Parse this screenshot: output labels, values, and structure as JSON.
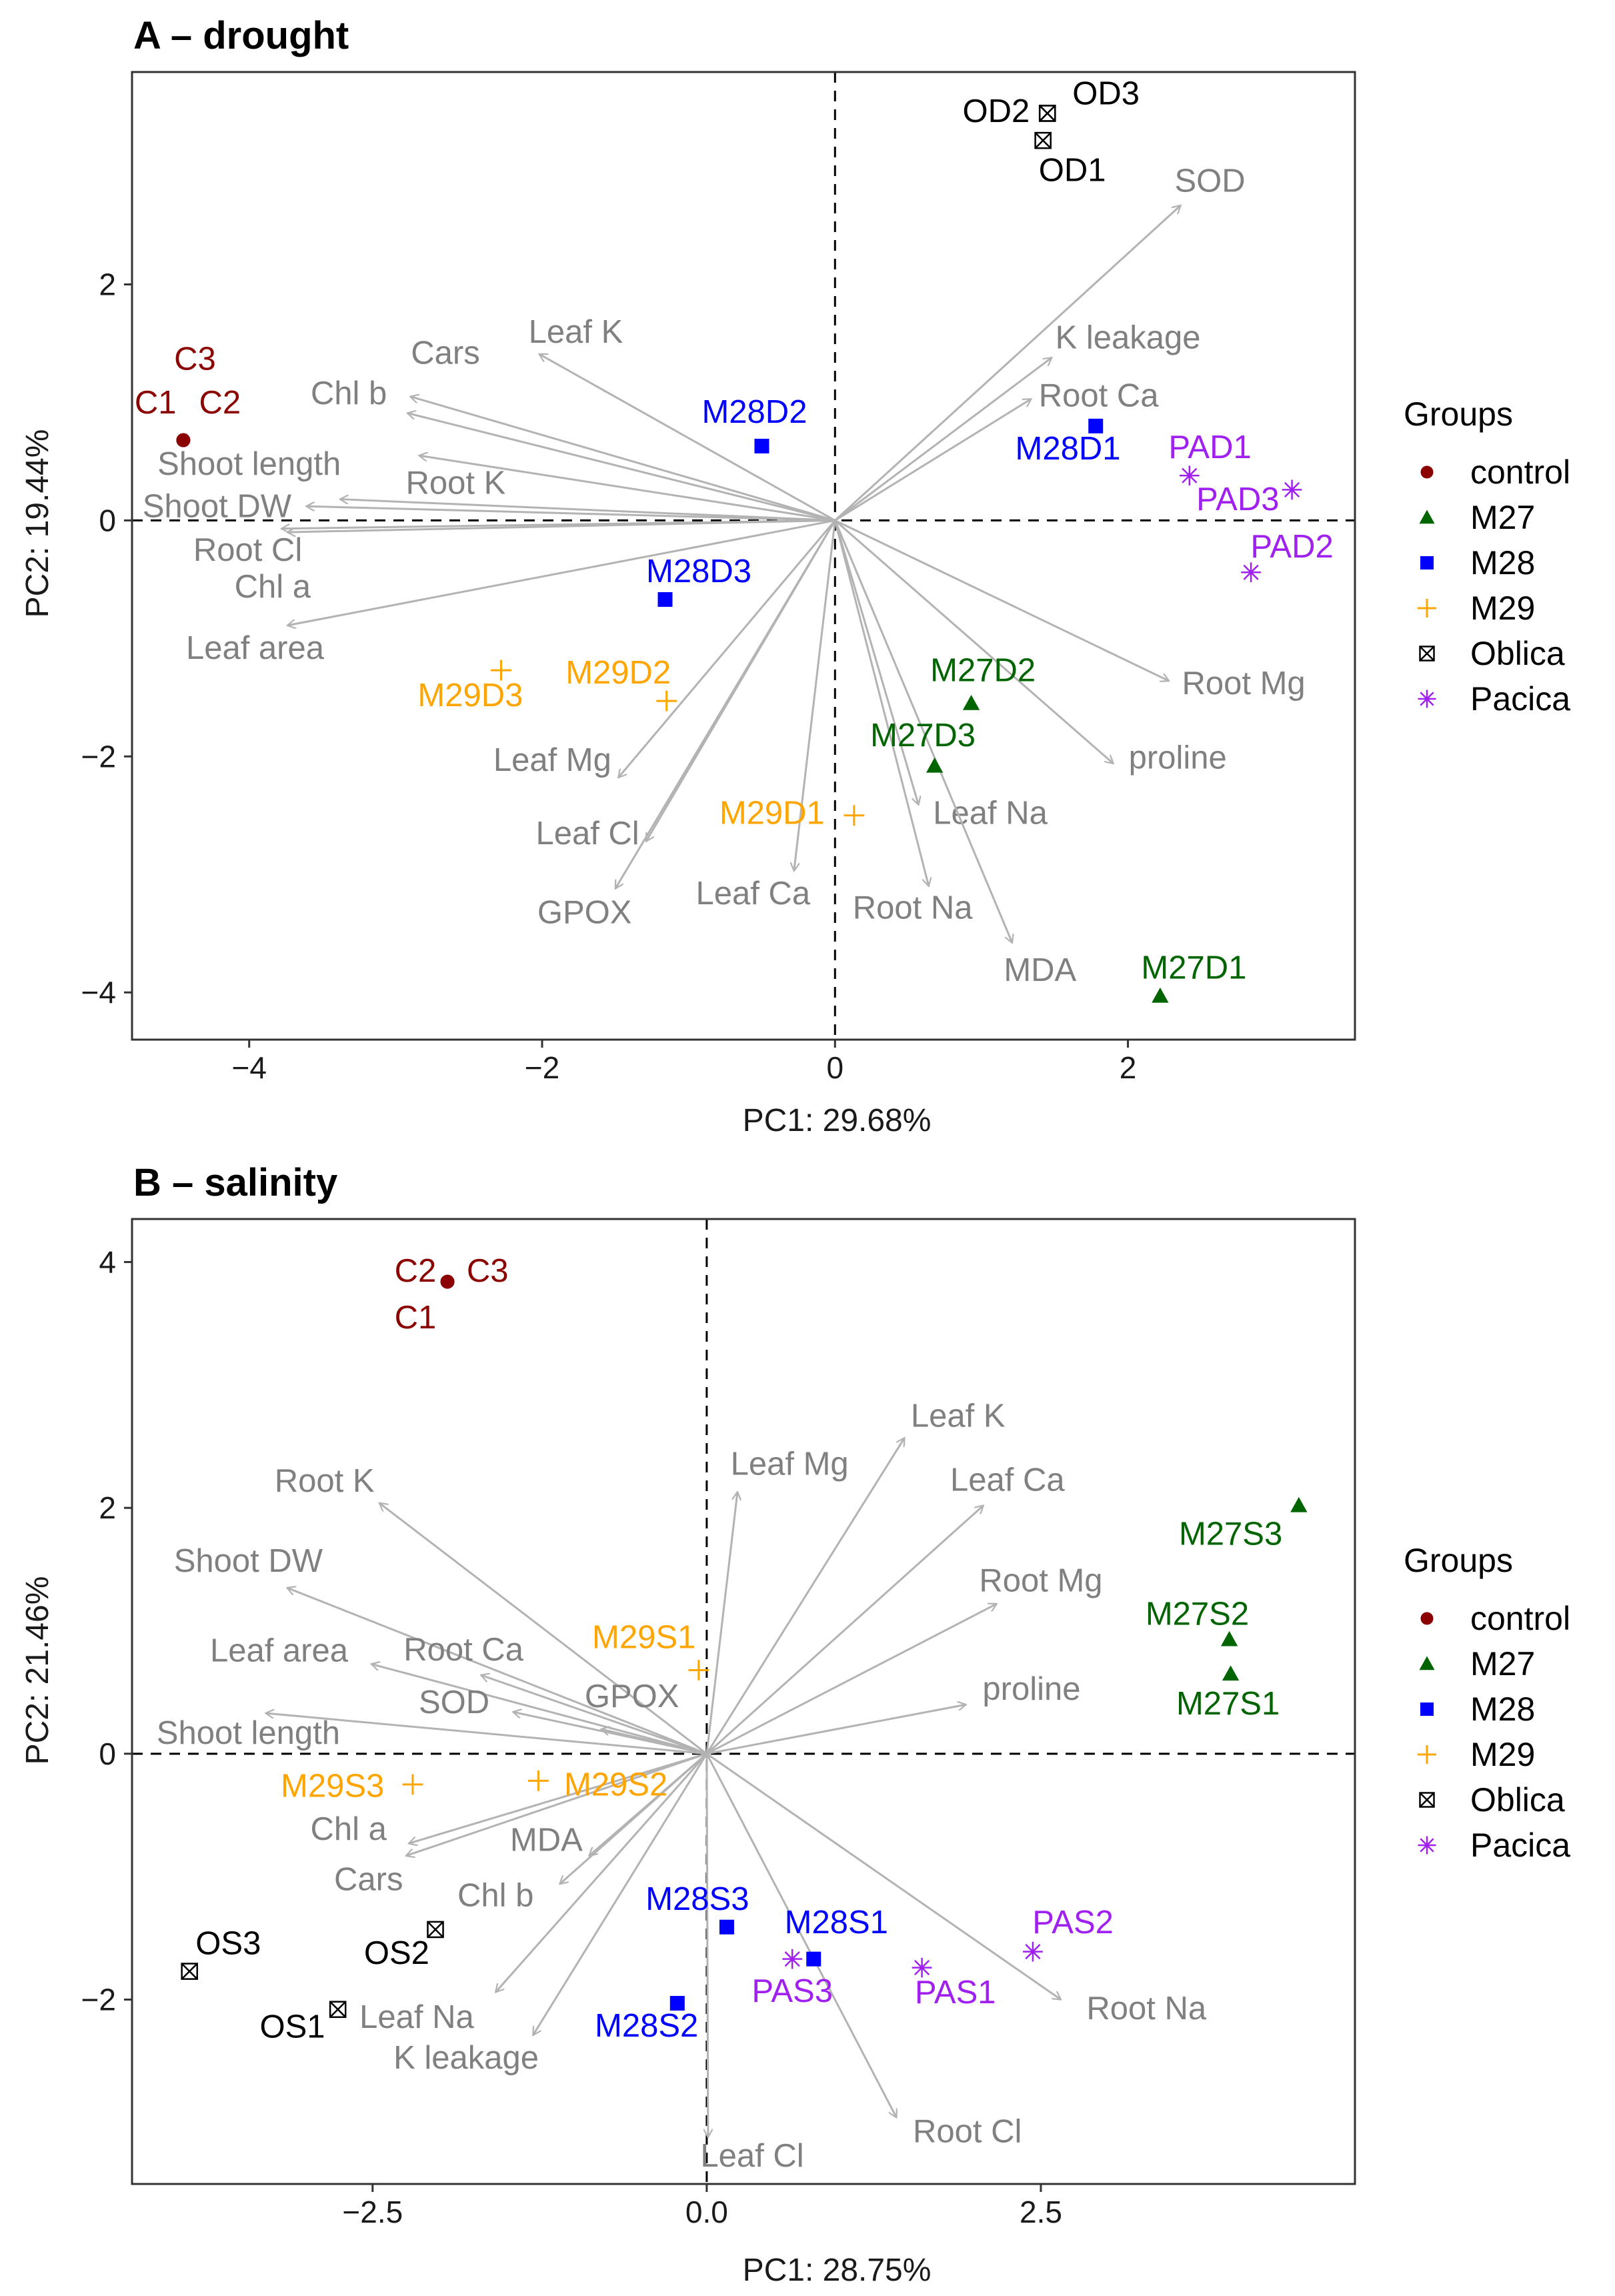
{
  "colors": {
    "control": "#8b0000",
    "M27": "#006400",
    "M28": "#0000ff",
    "M29": "#ffa500",
    "Oblica": "#000000",
    "Pacica": "#a020f0",
    "arrow": "#b3b3b3",
    "var_text": "#808080"
  },
  "legend": {
    "title": "Groups",
    "items": [
      {
        "label": "control",
        "group": "control",
        "shape": "circle"
      },
      {
        "label": "M27",
        "group": "M27",
        "shape": "triangle"
      },
      {
        "label": "M28",
        "group": "M28",
        "shape": "square"
      },
      {
        "label": "M29",
        "group": "M29",
        "shape": "plus"
      },
      {
        "label": "Oblica",
        "group": "Oblica",
        "shape": "boxx"
      },
      {
        "label": "Pacica",
        "group": "Pacica",
        "shape": "asterisk"
      }
    ]
  },
  "chart_data": [
    {
      "type": "scatter",
      "subtype": "pca-biplot",
      "title": "A – drought",
      "xlabel": "PC1: 29.68%",
      "ylabel": "PC2: 19.44%",
      "xlim": [
        -4.8,
        3.55
      ],
      "ylim": [
        -4.4,
        3.8
      ],
      "xticks": [
        -4,
        -2,
        0,
        2
      ],
      "xtick_labels": [
        "−4",
        "−2",
        "0",
        "2"
      ],
      "yticks": [
        -4,
        -2,
        0,
        2
      ],
      "ytick_labels": [
        "−4",
        "−2",
        "0",
        "2"
      ],
      "points": [
        {
          "label": "C1",
          "group": "control",
          "x": -4.45,
          "y": 0.68,
          "lx": -4.64,
          "ly": 0.98
        },
        {
          "label": "C2",
          "group": "control",
          "x": -4.45,
          "y": 0.68,
          "lx": -4.2,
          "ly": 0.98
        },
        {
          "label": "C3",
          "group": "control",
          "x": -4.45,
          "y": 0.68,
          "lx": -4.37,
          "ly": 1.35
        },
        {
          "label": "M27D1",
          "group": "M27",
          "x": 2.22,
          "y": -4.03,
          "lx": 2.45,
          "ly": -3.81
        },
        {
          "label": "M27D2",
          "group": "M27",
          "x": 0.93,
          "y": -1.55,
          "lx": 1.01,
          "ly": -1.29
        },
        {
          "label": "M27D3",
          "group": "M27",
          "x": 0.68,
          "y": -2.08,
          "lx": 0.6,
          "ly": -1.84
        },
        {
          "label": "M28D1",
          "group": "M28",
          "x": 1.78,
          "y": 0.8,
          "lx": 1.59,
          "ly": 0.59
        },
        {
          "label": "M28D2",
          "group": "M28",
          "x": -0.5,
          "y": 0.63,
          "lx": -0.55,
          "ly": 0.9
        },
        {
          "label": "M28D3",
          "group": "M28",
          "x": -1.16,
          "y": -0.67,
          "lx": -0.93,
          "ly": -0.45
        },
        {
          "label": "M29D1",
          "group": "M29",
          "x": 0.13,
          "y": -2.5,
          "lx": -0.43,
          "ly": -2.5
        },
        {
          "label": "M29D2",
          "group": "M29",
          "x": -1.15,
          "y": -1.53,
          "lx": -1.48,
          "ly": -1.31
        },
        {
          "label": "M29D3",
          "group": "M29",
          "x": -2.28,
          "y": -1.27,
          "lx": -2.49,
          "ly": -1.5
        },
        {
          "label": "OD1",
          "group": "Oblica",
          "x": 1.42,
          "y": 3.22,
          "lx": 1.62,
          "ly": 2.95
        },
        {
          "label": "OD2",
          "group": "Oblica",
          "x": 1.45,
          "y": 3.45,
          "lx": 1.1,
          "ly": 3.45
        },
        {
          "label": "OD3",
          "group": "Oblica",
          "x": 1.45,
          "y": 3.45,
          "lx": 1.85,
          "ly": 3.6
        },
        {
          "label": "PAD1",
          "group": "Pacica",
          "x": 2.42,
          "y": 0.38,
          "lx": 2.56,
          "ly": 0.6
        },
        {
          "label": "PAD2",
          "group": "Pacica",
          "x": 2.84,
          "y": -0.44,
          "lx": 3.12,
          "ly": -0.24
        },
        {
          "label": "PAD3",
          "group": "Pacica",
          "x": 3.12,
          "y": 0.26,
          "lx": 2.75,
          "ly": 0.16
        }
      ],
      "loadings": [
        {
          "label": "SOD",
          "x": 2.36,
          "y": 2.67,
          "lx": 2.56,
          "ly": 2.86
        },
        {
          "label": "K leakage",
          "x": 1.48,
          "y": 1.38,
          "lx": 2.0,
          "ly": 1.53
        },
        {
          "label": "Root Ca",
          "x": 1.34,
          "y": 1.03,
          "lx": 1.8,
          "ly": 1.04
        },
        {
          "label": "Root Mg",
          "x": 2.28,
          "y": -1.36,
          "lx": 2.79,
          "ly": -1.4
        },
        {
          "label": "proline",
          "x": 1.9,
          "y": -2.06,
          "lx": 2.34,
          "ly": -2.03
        },
        {
          "label": "Leaf Na",
          "x": 0.57,
          "y": -2.41,
          "lx": 1.06,
          "ly": -2.5
        },
        {
          "label": "Root Na",
          "x": 0.64,
          "y": -3.1,
          "lx": 0.53,
          "ly": -3.3
        },
        {
          "label": "MDA",
          "x": 1.21,
          "y": -3.58,
          "lx": 1.4,
          "ly": -3.83
        },
        {
          "label": "Leaf Ca",
          "x": -0.28,
          "y": -2.97,
          "lx": -0.56,
          "ly": -3.18
        },
        {
          "label": "GPOX",
          "x": -1.5,
          "y": -3.12,
          "lx": -1.71,
          "ly": -3.34
        },
        {
          "label": "Leaf Cl",
          "x": -1.29,
          "y": -2.72,
          "lx": -1.69,
          "ly": -2.67
        },
        {
          "label": "Leaf Mg",
          "x": -1.48,
          "y": -2.18,
          "lx": -1.93,
          "ly": -2.05
        },
        {
          "label": "Leaf K",
          "x": -2.02,
          "y": 1.41,
          "lx": -1.77,
          "ly": 1.58
        },
        {
          "label": "Cars",
          "x": -2.9,
          "y": 1.05,
          "lx": -2.66,
          "ly": 1.4
        },
        {
          "label": "Chl b",
          "x": -2.92,
          "y": 0.91,
          "lx": -3.32,
          "ly": 1.06
        },
        {
          "label": "Root K",
          "x": -2.84,
          "y": 0.55,
          "lx": -2.59,
          "ly": 0.3
        },
        {
          "label": "Shoot length",
          "x": -3.38,
          "y": 0.18,
          "lx": -4.0,
          "ly": 0.46
        },
        {
          "label": "Shoot DW",
          "x": -3.61,
          "y": 0.12,
          "lx": -4.22,
          "ly": 0.1
        },
        {
          "label": "Root Cl",
          "x": -3.78,
          "y": -0.07,
          "lx": -4.01,
          "ly": -0.27
        },
        {
          "label": "Chl a",
          "x": -3.74,
          "y": -0.1,
          "lx": -3.84,
          "ly": -0.58
        },
        {
          "label": "Leaf area",
          "x": -3.74,
          "y": -0.89,
          "lx": -3.96,
          "ly": -1.1
        }
      ]
    },
    {
      "type": "scatter",
      "subtype": "pca-biplot",
      "title": "B – salinity",
      "xlabel": "PC1: 28.75%",
      "ylabel": "PC2: 21.46%",
      "xlim": [
        -4.3,
        4.85
      ],
      "ylim": [
        -3.5,
        4.35
      ],
      "xticks": [
        -2.5,
        0,
        2.5
      ],
      "xtick_labels": [
        "−2.5",
        "0.0",
        "2.5"
      ],
      "yticks": [
        -2,
        0,
        2,
        4
      ],
      "ytick_labels": [
        "−2",
        "0",
        "2",
        "4"
      ],
      "points": [
        {
          "label": "C1",
          "group": "control",
          "x": -1.94,
          "y": 3.84,
          "lx": -2.18,
          "ly": 3.53
        },
        {
          "label": "C2",
          "group": "control",
          "x": -1.94,
          "y": 3.84,
          "lx": -2.18,
          "ly": 3.91
        },
        {
          "label": "C3",
          "group": "control",
          "x": -1.94,
          "y": 3.84,
          "lx": -1.64,
          "ly": 3.91
        },
        {
          "label": "M27S1",
          "group": "M27",
          "x": 3.92,
          "y": 0.65,
          "lx": 3.9,
          "ly": 0.39
        },
        {
          "label": "M27S2",
          "group": "M27",
          "x": 3.91,
          "y": 0.93,
          "lx": 3.67,
          "ly": 1.12
        },
        {
          "label": "M27S3",
          "group": "M27",
          "x": 4.43,
          "y": 2.02,
          "lx": 3.92,
          "ly": 1.77
        },
        {
          "label": "M28S1",
          "group": "M28",
          "x": 0.8,
          "y": -1.67,
          "lx": 0.97,
          "ly": -1.39
        },
        {
          "label": "M28S2",
          "group": "M28",
          "x": -0.22,
          "y": -2.03,
          "lx": -0.45,
          "ly": -2.23
        },
        {
          "label": "M28S3",
          "group": "M28",
          "x": 0.15,
          "y": -1.41,
          "lx": -0.07,
          "ly": -1.2
        },
        {
          "label": "M29S1",
          "group": "M29",
          "x": -0.06,
          "y": 0.68,
          "lx": -0.47,
          "ly": 0.93
        },
        {
          "label": "M29S2",
          "group": "M29",
          "x": -1.26,
          "y": -0.22,
          "lx": -0.68,
          "ly": -0.27
        },
        {
          "label": "M29S3",
          "group": "M29",
          "x": -2.2,
          "y": -0.25,
          "lx": -2.8,
          "ly": -0.28
        },
        {
          "label": "OS1",
          "group": "Oblica",
          "x": -2.76,
          "y": -2.08,
          "lx": -3.1,
          "ly": -2.24
        },
        {
          "label": "OS2",
          "group": "Oblica",
          "x": -2.03,
          "y": -1.43,
          "lx": -2.32,
          "ly": -1.64
        },
        {
          "label": "OS3",
          "group": "Oblica",
          "x": -3.87,
          "y": -1.77,
          "lx": -3.58,
          "ly": -1.56
        },
        {
          "label": "PAS1",
          "group": "Pacica",
          "x": 1.61,
          "y": -1.74,
          "lx": 1.86,
          "ly": -1.96
        },
        {
          "label": "PAS2",
          "group": "Pacica",
          "x": 2.44,
          "y": -1.61,
          "lx": 2.74,
          "ly": -1.39
        },
        {
          "label": "PAS3",
          "group": "Pacica",
          "x": 0.64,
          "y": -1.67,
          "lx": 0.64,
          "ly": -1.95
        }
      ],
      "loadings": [
        {
          "label": "Leaf K",
          "x": 1.48,
          "y": 2.57,
          "lx": 1.88,
          "ly": 2.73
        },
        {
          "label": "Leaf Mg",
          "x": 0.23,
          "y": 2.13,
          "lx": 0.62,
          "ly": 2.34
        },
        {
          "label": "Leaf Ca",
          "x": 2.07,
          "y": 2.02,
          "lx": 2.25,
          "ly": 2.21
        },
        {
          "label": "Root Mg",
          "x": 2.17,
          "y": 1.22,
          "lx": 2.5,
          "ly": 1.39
        },
        {
          "label": "proline",
          "x": 1.94,
          "y": 0.4,
          "lx": 2.43,
          "ly": 0.51
        },
        {
          "label": "Root K",
          "x": -2.45,
          "y": 2.04,
          "lx": -2.86,
          "ly": 2.2
        },
        {
          "label": "Shoot DW",
          "x": -3.14,
          "y": 1.35,
          "lx": -3.43,
          "ly": 1.55
        },
        {
          "label": "Leaf area",
          "x": -2.51,
          "y": 0.73,
          "lx": -3.2,
          "ly": 0.82
        },
        {
          "label": "Root Ca",
          "x": -1.69,
          "y": 0.64,
          "lx": -1.82,
          "ly": 0.83
        },
        {
          "label": "Shoot length",
          "x": -3.3,
          "y": 0.33,
          "lx": -3.43,
          "ly": 0.15
        },
        {
          "label": "SOD",
          "x": -1.45,
          "y": 0.34,
          "lx": -1.89,
          "ly": 0.4
        },
        {
          "label": "GPOX",
          "x": -0.79,
          "y": 0.2,
          "lx": -0.56,
          "ly": 0.45
        },
        {
          "label": "Chl a",
          "x": -2.23,
          "y": -0.73,
          "lx": -2.68,
          "ly": -0.63
        },
        {
          "label": "Cars",
          "x": -2.25,
          "y": -0.83,
          "lx": -2.53,
          "ly": -1.04
        },
        {
          "label": "MDA",
          "x": -0.88,
          "y": -0.83,
          "lx": -1.2,
          "ly": -0.72
        },
        {
          "label": "Chl b",
          "x": -1.1,
          "y": -1.06,
          "lx": -1.58,
          "ly": -1.17
        },
        {
          "label": "Leaf Na",
          "x": -1.58,
          "y": -1.94,
          "lx": -2.17,
          "ly": -2.16
        },
        {
          "label": "K leakage",
          "x": -1.3,
          "y": -2.29,
          "lx": -1.8,
          "ly": -2.49
        },
        {
          "label": "Leaf Cl",
          "x": 0.01,
          "y": -3.12,
          "lx": 0.34,
          "ly": -3.29
        },
        {
          "label": "Root Cl",
          "x": 1.42,
          "y": -2.96,
          "lx": 1.95,
          "ly": -3.09
        },
        {
          "label": "Root Na",
          "x": 2.65,
          "y": -2.0,
          "lx": 3.29,
          "ly": -2.09
        }
      ]
    }
  ]
}
